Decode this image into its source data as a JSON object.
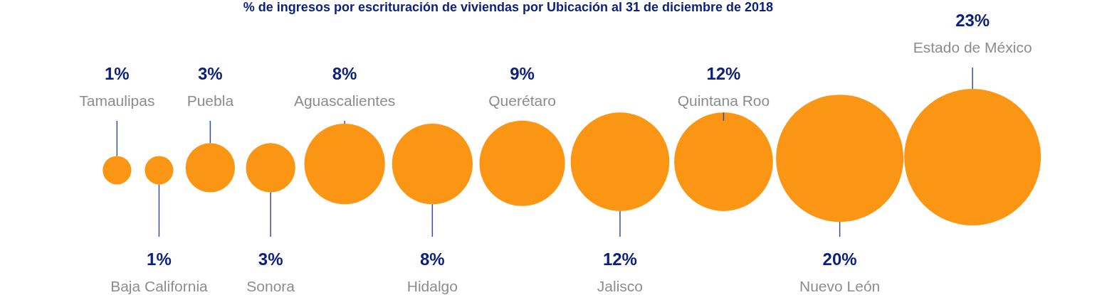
{
  "chart_data": {
    "type": "other",
    "title": "% de ingresos por escrituración de viviendas por Ubicación al 31 de diciembre de 2018",
    "categories": [
      "Tamaulipas",
      "Baja California",
      "Puebla",
      "Sonora",
      "Aguascalientes",
      "Hidalgo",
      "Querétaro",
      "Jalisco",
      "Quintana Roo",
      "Nuevo León",
      "Estado de México"
    ],
    "values": [
      1,
      1,
      3,
      3,
      8,
      8,
      9,
      12,
      12,
      20,
      23
    ],
    "value_labels": [
      "1%",
      "1%",
      "3%",
      "3%",
      "8%",
      "8%",
      "9%",
      "12%",
      "12%",
      "20%",
      "23%"
    ],
    "color": "#fb9514"
  }
}
